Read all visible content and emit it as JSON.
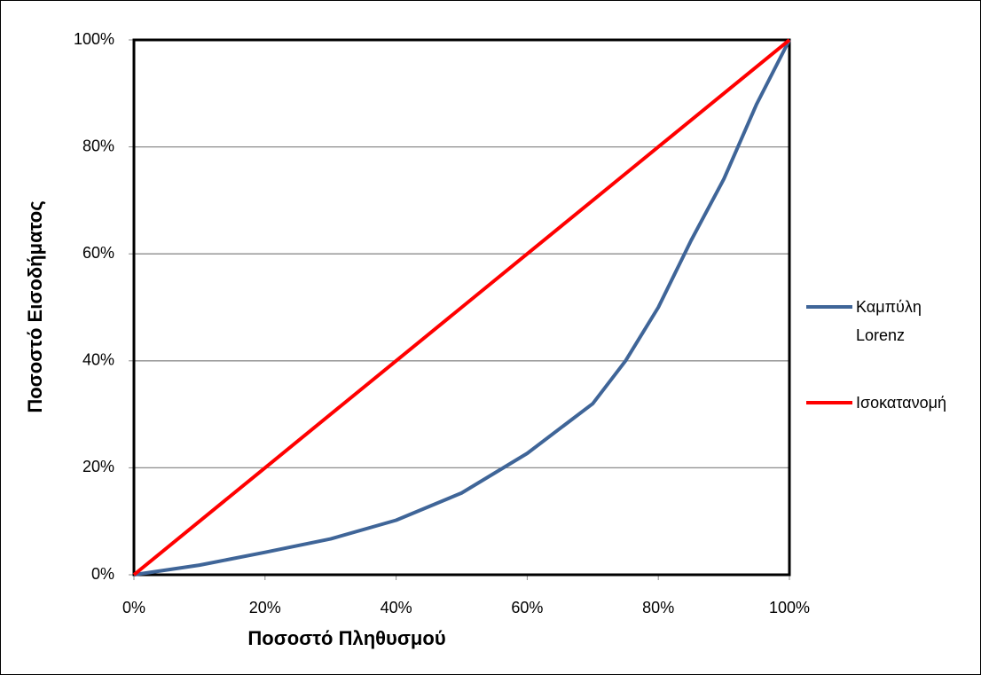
{
  "chart_data": {
    "type": "line",
    "x_label": "Ποσοστό Πληθυσμού",
    "y_label": "Ποσοστό Εισοδήματος",
    "x": [
      0,
      10,
      20,
      30,
      40,
      50,
      60,
      70,
      75,
      80,
      85,
      90,
      95,
      100
    ],
    "series": [
      {
        "name": "Καμπύλη Lorenz",
        "color": "#3f6598",
        "values": [
          0,
          1.8,
          4.2,
          6.7,
          10.2,
          15.3,
          22.7,
          32,
          40,
          50,
          62.5,
          74,
          88,
          100
        ]
      },
      {
        "name": "Ισοκατανομή",
        "color": "#ff0000",
        "values": [
          0,
          10,
          20,
          30,
          40,
          50,
          60,
          70,
          75,
          80,
          85,
          90,
          95,
          100
        ]
      }
    ],
    "xlim": [
      0,
      100
    ],
    "ylim": [
      0,
      100
    ],
    "xticks": [
      {
        "value": 0,
        "label": "0%"
      },
      {
        "value": 20,
        "label": "20%"
      },
      {
        "value": 40,
        "label": "40%"
      },
      {
        "value": 60,
        "label": "60%"
      },
      {
        "value": 80,
        "label": "80%"
      },
      {
        "value": 100,
        "label": "100%"
      }
    ],
    "yticks": [
      {
        "value": 0,
        "label": "0%"
      },
      {
        "value": 20,
        "label": "20%"
      },
      {
        "value": 40,
        "label": "40%"
      },
      {
        "value": 60,
        "label": "60%"
      },
      {
        "value": 80,
        "label": "80%"
      },
      {
        "value": 100,
        "label": "100%"
      }
    ],
    "grid": true,
    "legend_position": "right"
  }
}
